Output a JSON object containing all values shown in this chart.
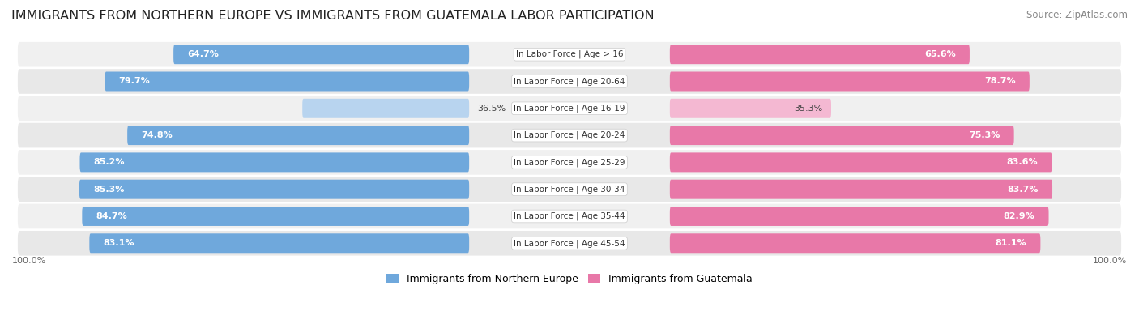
{
  "title": "IMMIGRANTS FROM NORTHERN EUROPE VS IMMIGRANTS FROM GUATEMALA LABOR PARTICIPATION",
  "source": "Source: ZipAtlas.com",
  "categories": [
    "In Labor Force | Age > 16",
    "In Labor Force | Age 20-64",
    "In Labor Force | Age 16-19",
    "In Labor Force | Age 20-24",
    "In Labor Force | Age 25-29",
    "In Labor Force | Age 30-34",
    "In Labor Force | Age 35-44",
    "In Labor Force | Age 45-54"
  ],
  "northern_europe": [
    64.7,
    79.7,
    36.5,
    74.8,
    85.2,
    85.3,
    84.7,
    83.1
  ],
  "guatemala": [
    65.6,
    78.7,
    35.3,
    75.3,
    83.6,
    83.7,
    82.9,
    81.1
  ],
  "northern_europe_color": "#6fa8dc",
  "northern_europe_light": "#b8d4ef",
  "guatemala_color": "#e878a8",
  "guatemala_light": "#f4b8d2",
  "row_bg": "#f0f0f0",
  "row_bg_alt": "#e8e8e8",
  "max_value": 100.0,
  "legend_ne": "Immigrants from Northern Europe",
  "legend_gt": "Immigrants from Guatemala",
  "title_fontsize": 11.5,
  "source_fontsize": 8.5,
  "bar_label_fontsize": 8,
  "category_fontsize": 7.5,
  "legend_fontsize": 9
}
